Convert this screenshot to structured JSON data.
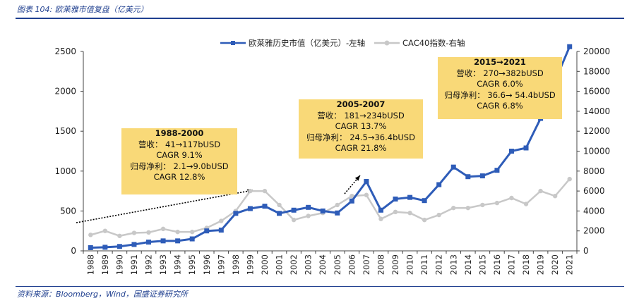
{
  "header": {
    "title": "图表 104: 欧莱雅市值复盘（亿美元）"
  },
  "footer": {
    "source": "资料来源：Bloomberg，Wind，国盛证券研究所"
  },
  "annotations": [
    {
      "heading": "1988-2000",
      "lines": [
        "营收： 41→117bUSD",
        "CAGR 9.1%",
        "归母净利： 2.1→9.0bUSD",
        "CAGR 12.8%"
      ]
    },
    {
      "heading": "2005-2007",
      "lines": [
        "营收： 181→234bUSD",
        "CAGR 13.7%",
        "归母净利： 24.5→36.4bUSD",
        "CAGR 21.8%"
      ]
    },
    {
      "heading": "2015→2021",
      "lines": [
        "营收： 270→382bUSD",
        "CAGR 6.0%",
        "归母净利： 36.6→ 54.4bUSD",
        "CAGR 6.8%"
      ]
    }
  ],
  "colors": {
    "series1": "#2e5cb8",
    "series2": "#c8c8c8",
    "annotation_bg": "#f9d978",
    "title": "#1f3f8f"
  },
  "chart_data": {
    "type": "line",
    "x": [
      "1988",
      "1989",
      "1990",
      "1991",
      "1992",
      "1993",
      "1994",
      "1995",
      "1996",
      "1997",
      "1998",
      "1999",
      "2000",
      "2001",
      "2002",
      "2003",
      "2004",
      "2005",
      "2006",
      "2007",
      "2008",
      "2009",
      "2010",
      "2011",
      "2012",
      "2013",
      "2014",
      "2015",
      "2016",
      "2017",
      "2018",
      "2019",
      "2020",
      "2021"
    ],
    "series": [
      {
        "name": "欧莱雅历史市值（亿美元）-左轴",
        "axis": "left",
        "marker": "square",
        "values": [
          40,
          45,
          55,
          80,
          110,
          125,
          125,
          150,
          250,
          260,
          470,
          530,
          560,
          470,
          510,
          545,
          500,
          475,
          625,
          870,
          510,
          650,
          670,
          630,
          830,
          1050,
          930,
          940,
          1010,
          1250,
          1290,
          1660,
          2130,
          2560
        ]
      },
      {
        "name": "CAC40指数-右轴",
        "axis": "right",
        "marker": "circle",
        "values": [
          1600,
          2000,
          1500,
          1800,
          1850,
          2200,
          1900,
          1900,
          2300,
          3000,
          4000,
          6000,
          6000,
          4600,
          3100,
          3500,
          3800,
          4600,
          5500,
          5600,
          3200,
          3900,
          3800,
          3100,
          3600,
          4300,
          4300,
          4600,
          4800,
          5300,
          4700,
          6000,
          5500,
          7200
        ]
      }
    ],
    "y_left": {
      "min": 0,
      "max": 2500,
      "ticks": [
        "0",
        "500",
        "1000",
        "1500",
        "2000",
        "2500"
      ]
    },
    "y_right": {
      "min": 0,
      "max": 20000,
      "ticks": [
        "0",
        "2000",
        "4000",
        "6000",
        "8000",
        "10000",
        "12000",
        "14000",
        "16000",
        "18000",
        "20000"
      ]
    },
    "legend_position": "top-center",
    "grid": false
  }
}
